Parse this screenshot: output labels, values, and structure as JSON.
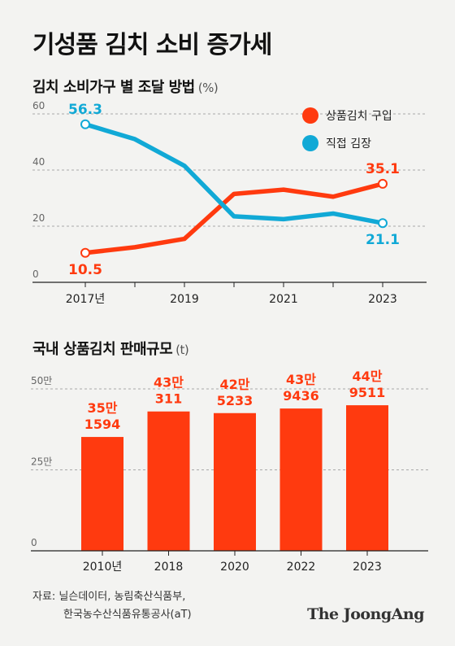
{
  "title": "기성품 김치 소비 증가세",
  "chart_data": [
    {
      "type": "line",
      "title": "김치 소비가구 별 조달 방법",
      "unit": "(%)",
      "x": [
        2017,
        2018,
        2019,
        2020,
        2021,
        2022,
        2023
      ],
      "x_tick_labels": [
        "2017년",
        "2019",
        "2021",
        "2023"
      ],
      "ylim": [
        0,
        60
      ],
      "y_ticks": [
        "0",
        "20",
        "40",
        "60"
      ],
      "legend_position": "top-right",
      "series": [
        {
          "name": "상품김치 구입",
          "color": "#ff3a0f",
          "values": [
            10.5,
            12.5,
            15.5,
            31.5,
            33,
            30.5,
            35.1
          ],
          "labels": [
            {
              "index": 0,
              "text": "10.5"
            },
            {
              "index": 6,
              "text": "35.1"
            }
          ]
        },
        {
          "name": "직접 김장",
          "color": "#11a9d6",
          "values": [
            56.3,
            51,
            41.5,
            23.5,
            22.5,
            24.5,
            21.1
          ],
          "labels": [
            {
              "index": 0,
              "text": "56.3"
            },
            {
              "index": 6,
              "text": "21.1"
            }
          ]
        }
      ]
    },
    {
      "type": "bar",
      "title": "국내 상품김치 판매규모",
      "unit": "(t)",
      "categories": [
        "2010년",
        "2018",
        "2020",
        "2022",
        "2023"
      ],
      "values": [
        351594,
        430311,
        425233,
        439436,
        449511
      ],
      "value_labels": [
        [
          "35만",
          "1594"
        ],
        [
          "43만",
          "311"
        ],
        [
          "42만",
          "5233"
        ],
        [
          "43만",
          "9436"
        ],
        [
          "44만",
          "9511"
        ]
      ],
      "ylim": [
        0,
        500000
      ],
      "y_ticks": [
        "0",
        "25만",
        "50만"
      ],
      "color": "#ff3a0f"
    }
  ],
  "source": {
    "line1": "자료: 닐슨데이터, 농림축산식품부,",
    "line2": "한국농수산식품유통공사(aT)"
  },
  "brand": "The JoongAng"
}
